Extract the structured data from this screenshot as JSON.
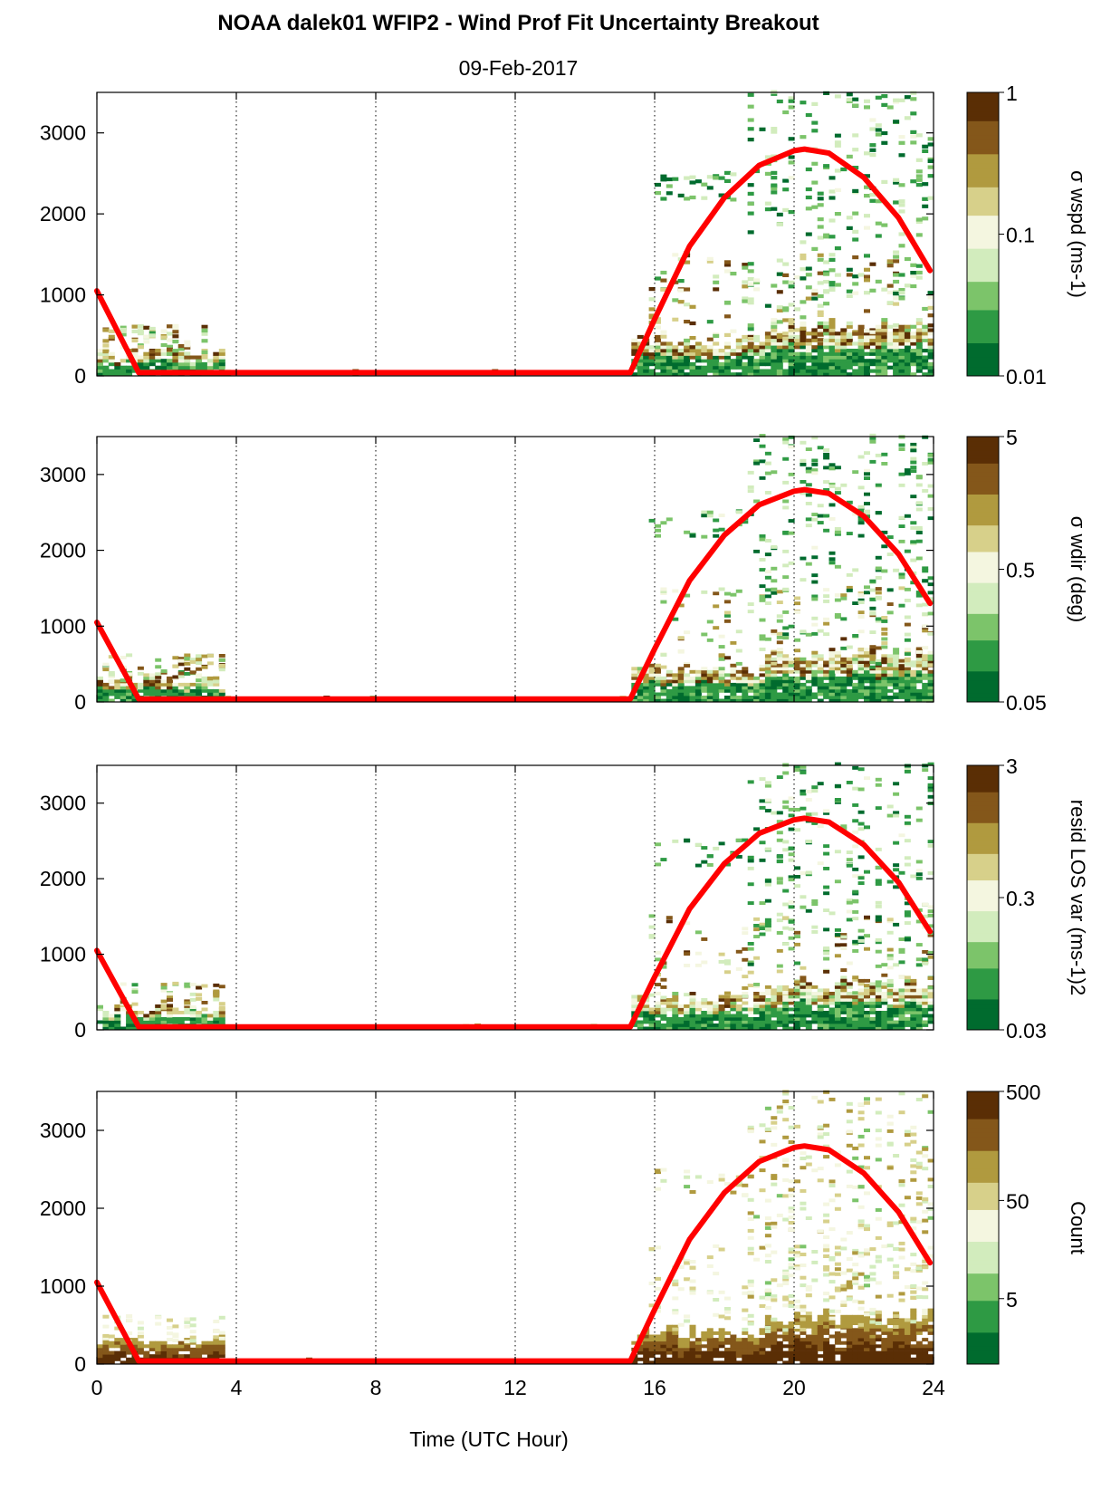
{
  "title": "NOAA dalek01 WFIP2 - Wind Prof Fit Uncertainty Breakout",
  "subtitle": "09-Feb-2017",
  "xlabel": "Time (UTC Hour)",
  "colors": {
    "curve": "#ff0000",
    "colormap": [
      "#006b2e",
      "#2e9a44",
      "#7cc46a",
      "#d2ecbd",
      "#f4f6e0",
      "#d7d08a",
      "#b09a3f",
      "#84571a",
      "#5a2e05"
    ]
  },
  "chart_data": [
    {
      "type": "heatmap",
      "name": "sigma-wspd",
      "ylabel": "",
      "colorbar_label": "σ wspd (ms-1)",
      "colorbar_ticks": [
        "0.01",
        "0.1",
        "1"
      ],
      "colorbar_scale": "log",
      "x_ticks": [
        "0",
        "4",
        "8",
        "12",
        "16",
        "20",
        "24"
      ],
      "y_ticks": [
        "0",
        "1000",
        "2000",
        "3000"
      ],
      "xlim": [
        0,
        24
      ],
      "ylim": [
        0,
        3500
      ],
      "grid": "vertical dotted at 4-hour intervals",
      "overlay_line": {
        "color": "#ff0000",
        "x": [
          0,
          1.2,
          15.3,
          16,
          17,
          18,
          19,
          20,
          20.3,
          21,
          22,
          23,
          23.9
        ],
        "y": [
          1050,
          40,
          40,
          700,
          1600,
          2200,
          2600,
          2780,
          2800,
          2750,
          2450,
          1950,
          1300
        ]
      }
    },
    {
      "type": "heatmap",
      "name": "sigma-wdir",
      "ylabel": "",
      "colorbar_label": "σ wdir (deg)",
      "colorbar_ticks": [
        "0.05",
        "0.5",
        "5"
      ],
      "colorbar_scale": "log",
      "x_ticks": [
        "0",
        "4",
        "8",
        "12",
        "16",
        "20",
        "24"
      ],
      "y_ticks": [
        "0",
        "1000",
        "2000",
        "3000"
      ],
      "xlim": [
        0,
        24
      ],
      "ylim": [
        0,
        3500
      ],
      "grid": "vertical dotted at 4-hour intervals",
      "overlay_line": {
        "color": "#ff0000",
        "x": [
          0,
          1.2,
          15.3,
          16,
          17,
          18,
          19,
          20,
          20.3,
          21,
          22,
          23,
          23.9
        ],
        "y": [
          1050,
          40,
          40,
          700,
          1600,
          2200,
          2600,
          2780,
          2800,
          2750,
          2450,
          1950,
          1300
        ]
      }
    },
    {
      "type": "heatmap",
      "name": "resid-los-var",
      "ylabel": "",
      "colorbar_label": "resid LOS var (ms-1)2",
      "colorbar_ticks": [
        "0.03",
        "0.3",
        "3"
      ],
      "colorbar_scale": "log",
      "x_ticks": [
        "0",
        "4",
        "8",
        "12",
        "16",
        "20",
        "24"
      ],
      "y_ticks": [
        "0",
        "1000",
        "2000",
        "3000"
      ],
      "xlim": [
        0,
        24
      ],
      "ylim": [
        0,
        3500
      ],
      "grid": "vertical dotted at 4-hour intervals",
      "overlay_line": {
        "color": "#ff0000",
        "x": [
          0,
          1.2,
          15.3,
          16,
          17,
          18,
          19,
          20,
          20.3,
          21,
          22,
          23,
          23.9
        ],
        "y": [
          1050,
          40,
          40,
          700,
          1600,
          2200,
          2600,
          2780,
          2800,
          2750,
          2450,
          1950,
          1300
        ]
      }
    },
    {
      "type": "heatmap",
      "name": "count",
      "ylabel": "",
      "colorbar_label": "Count",
      "colorbar_ticks": [
        "5",
        "50",
        "500"
      ],
      "colorbar_scale": "log",
      "x_ticks": [
        "0",
        "4",
        "8",
        "12",
        "16",
        "20",
        "24"
      ],
      "y_ticks": [
        "0",
        "1000",
        "2000",
        "3000"
      ],
      "xlim": [
        0,
        24
      ],
      "ylim": [
        0,
        3500
      ],
      "grid": "vertical dotted at 4-hour intervals",
      "overlay_line": {
        "color": "#ff0000",
        "x": [
          0,
          1.2,
          15.3,
          16,
          17,
          18,
          19,
          20,
          20.3,
          21,
          22,
          23,
          23.9
        ],
        "y": [
          1050,
          40,
          40,
          700,
          1600,
          2200,
          2600,
          2780,
          2800,
          2750,
          2450,
          1950,
          1300
        ]
      }
    }
  ]
}
